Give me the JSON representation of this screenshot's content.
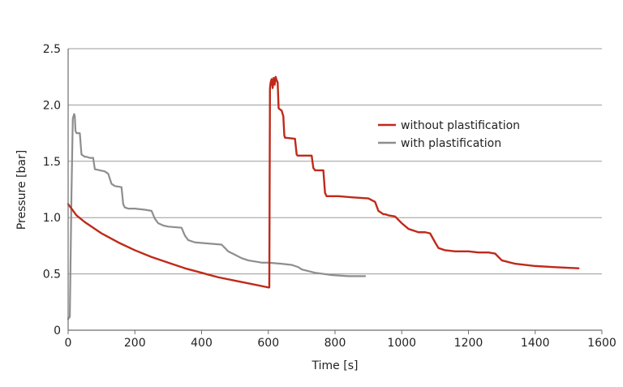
{
  "chart_data": {
    "type": "line",
    "title": "",
    "xlabel": "Time [s]",
    "ylabel": "Pressure [bar]",
    "xlim": [
      0,
      1600
    ],
    "ylim": [
      0,
      2.5
    ],
    "xticks": [
      0,
      200,
      400,
      600,
      800,
      1000,
      1200,
      1400,
      1600
    ],
    "xtick_labels": [
      "0",
      "200",
      "400",
      "600",
      "800",
      "1000",
      "1200",
      "1400",
      "1600"
    ],
    "yticks": [
      0,
      0.5,
      1.0,
      1.5,
      2.0,
      2.5
    ],
    "ytick_labels": [
      "0",
      "0.5",
      "1.0",
      "1.5",
      "2.0",
      "2.5"
    ],
    "grid": "horizontal",
    "legend_position": "center-right",
    "colors": {
      "without": "#c0291a",
      "with": "#8e8e8e",
      "grid": "#9a9a9a",
      "axis": "#6e6e6e"
    },
    "series": [
      {
        "name": "without plastification",
        "x": [
          0,
          25,
          50,
          100,
          150,
          200,
          250,
          300,
          350,
          400,
          450,
          500,
          550,
          600,
          603,
          605,
          607,
          610,
          613,
          616,
          619,
          622,
          625,
          628,
          631,
          640,
          645,
          648,
          650,
          680,
          685,
          688,
          690,
          730,
          735,
          738,
          740,
          765,
          770,
          773,
          775,
          800,
          810,
          850,
          900,
          920,
          930,
          940,
          945,
          950,
          960,
          980,
          1000,
          1020,
          1040,
          1050,
          1060,
          1070,
          1085,
          1100,
          1110,
          1130,
          1160,
          1200,
          1230,
          1260,
          1280,
          1300,
          1340,
          1400,
          1460,
          1530
        ],
        "values": [
          1.12,
          1.02,
          0.96,
          0.86,
          0.78,
          0.71,
          0.65,
          0.6,
          0.55,
          0.51,
          0.47,
          0.44,
          0.41,
          0.38,
          0.38,
          2.15,
          2.2,
          2.23,
          2.15,
          2.24,
          2.18,
          2.25,
          2.22,
          2.2,
          1.97,
          1.95,
          1.9,
          1.73,
          1.71,
          1.7,
          1.56,
          1.55,
          1.55,
          1.55,
          1.44,
          1.43,
          1.42,
          1.42,
          1.22,
          1.2,
          1.19,
          1.19,
          1.19,
          1.18,
          1.17,
          1.14,
          1.06,
          1.04,
          1.03,
          1.03,
          1.02,
          1.01,
          0.95,
          0.9,
          0.88,
          0.87,
          0.87,
          0.87,
          0.86,
          0.78,
          0.73,
          0.71,
          0.7,
          0.7,
          0.69,
          0.69,
          0.68,
          0.62,
          0.59,
          0.57,
          0.56,
          0.55
        ]
      },
      {
        "name": "with plastification",
        "x": [
          0,
          5,
          10,
          12,
          14,
          16,
          18,
          20,
          22,
          25,
          35,
          40,
          50,
          55,
          65,
          75,
          80,
          110,
          115,
          120,
          130,
          140,
          160,
          165,
          170,
          180,
          200,
          230,
          250,
          260,
          270,
          285,
          300,
          340,
          350,
          360,
          380,
          420,
          460,
          470,
          480,
          500,
          520,
          540,
          560,
          580,
          600,
          640,
          670,
          690,
          700,
          740,
          790,
          840,
          890
        ],
        "values": [
          0.1,
          0.12,
          1.2,
          1.55,
          1.88,
          1.9,
          1.92,
          1.9,
          1.77,
          1.75,
          1.75,
          1.56,
          1.54,
          1.54,
          1.53,
          1.53,
          1.43,
          1.41,
          1.4,
          1.39,
          1.3,
          1.28,
          1.27,
          1.12,
          1.09,
          1.08,
          1.08,
          1.07,
          1.06,
          0.99,
          0.95,
          0.93,
          0.92,
          0.91,
          0.84,
          0.8,
          0.78,
          0.77,
          0.76,
          0.73,
          0.7,
          0.67,
          0.64,
          0.62,
          0.61,
          0.6,
          0.6,
          0.59,
          0.58,
          0.56,
          0.54,
          0.51,
          0.49,
          0.48,
          0.48
        ]
      }
    ]
  }
}
